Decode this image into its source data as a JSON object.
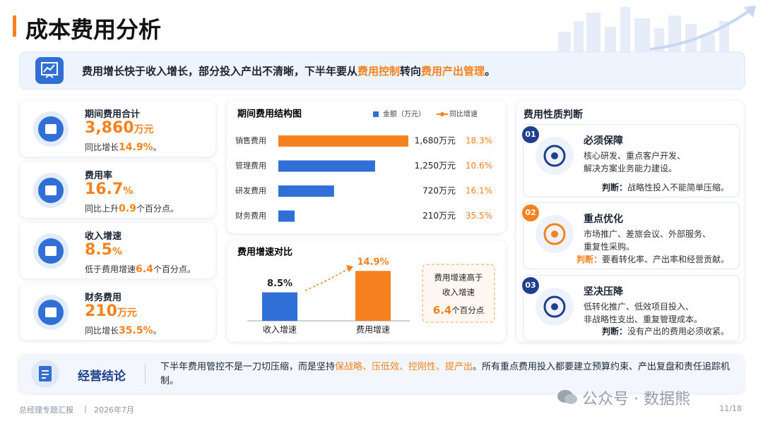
{
  "header": {
    "title": "成本费用分析"
  },
  "banner": {
    "segments": [
      {
        "text": "费用增长快于收入增长，部分投入产出不清晰，下半年要从",
        "emphasis": false
      },
      {
        "text": "费用控制",
        "emphasis": true
      },
      {
        "text": "转向",
        "emphasis": false
      },
      {
        "text": "费用产出管理",
        "emphasis": true
      },
      {
        "text": "。",
        "emphasis": false
      }
    ]
  },
  "kpis": [
    {
      "label": "期间费用合计",
      "value": "3,860",
      "unit": "万元",
      "note": "同比增长",
      "note_value": "14.9%",
      "note_suffix": "。"
    },
    {
      "label": "费用率",
      "value": "16.7",
      "unit": "%",
      "note": "同比上升",
      "note_value": "0.9",
      "note_suffix": "个百分点。"
    },
    {
      "label": "收入增速",
      "value": "8.5",
      "unit": "%",
      "note": "低于费用增速",
      "note_value": "6.4",
      "note_suffix": "个百分点。"
    },
    {
      "label": "财务费用",
      "value": "210",
      "unit": "万元",
      "note": "同比增长",
      "note_value": "35.5%",
      "note_suffix": "。"
    }
  ],
  "chart_data": [
    {
      "type": "bar",
      "orientation": "horizontal",
      "title": "期间费用结构图",
      "categories": [
        "销售费用",
        "管理费用",
        "研发费用",
        "财务费用"
      ],
      "xlim": [
        0,
        1680
      ],
      "series": [
        {
          "name": "金额（万元）",
          "color": "#2f6fd6",
          "colors": [
            "#f5821f",
            "#2f6fd6",
            "#2f6fd6",
            "#2f6fd6"
          ],
          "values": [
            1680,
            1250,
            720,
            210
          ],
          "value_labels": [
            "1,680万元",
            "1,250万元",
            "720万元",
            "210万元"
          ]
        },
        {
          "name": "同比增速",
          "color": "#f5821f",
          "values": [
            18.3,
            10.6,
            16.1,
            35.5
          ],
          "value_labels": [
            "18.3%",
            "10.6%",
            "16.1%",
            "35.5%"
          ]
        }
      ]
    },
    {
      "type": "bar",
      "orientation": "vertical",
      "title": "费用增速对比",
      "categories": [
        "收入增速",
        "费用增速"
      ],
      "values": [
        8.5,
        14.9
      ],
      "value_labels": [
        "8.5%",
        "14.9%"
      ],
      "colors": [
        "#2f6fd6",
        "#f5821f"
      ],
      "ylim": [
        0,
        16
      ],
      "annotation": {
        "lines": [
          "费用增速高于",
          "收入增速"
        ],
        "value": "6.4",
        "suffix": "个百分点"
      }
    }
  ],
  "judgement": {
    "title": "费用性质判断",
    "items": [
      {
        "number": "01",
        "color": "#1f3f8f",
        "title": "必须保障",
        "description": [
          "核心研发、重点客户开发、",
          "解决方案业务能力建设。"
        ],
        "verdict_label": "判断：",
        "verdict": "战略性投入不能简单压缩。"
      },
      {
        "number": "02",
        "color": "#f5821f",
        "title": "重点优化",
        "description": [
          "市场推广、差旅会议、外部服务、",
          "重复性采购。"
        ],
        "verdict_label": "判断：",
        "verdict": "要看转化率、产出率和经营贡献。"
      },
      {
        "number": "03",
        "color": "#1f3f8f",
        "title": "坚决压降",
        "description": [
          "低转化推广、低效项目投入、",
          "非战略性支出、重复管理成本。"
        ],
        "verdict_label": "判断：",
        "verdict": "没有产出的费用必须收紧。"
      }
    ]
  },
  "conclusion": {
    "label": "经营结论",
    "segments": [
      {
        "text": "下半年费用管控不是一刀切压缩，而是坚持",
        "emphasis": false
      },
      {
        "text": "保战略、压低效、控刚性、提产出",
        "emphasis": true
      },
      {
        "text": "。所有重点费用投入都要建立预算约束、产出复盘和责任追踪机制。",
        "emphasis": false
      }
    ]
  },
  "footer": {
    "left": "总经理专题汇报",
    "separator": "|",
    "date": "2026年7月",
    "page": "11/18"
  },
  "watermark": "公众号 · 数据熊"
}
